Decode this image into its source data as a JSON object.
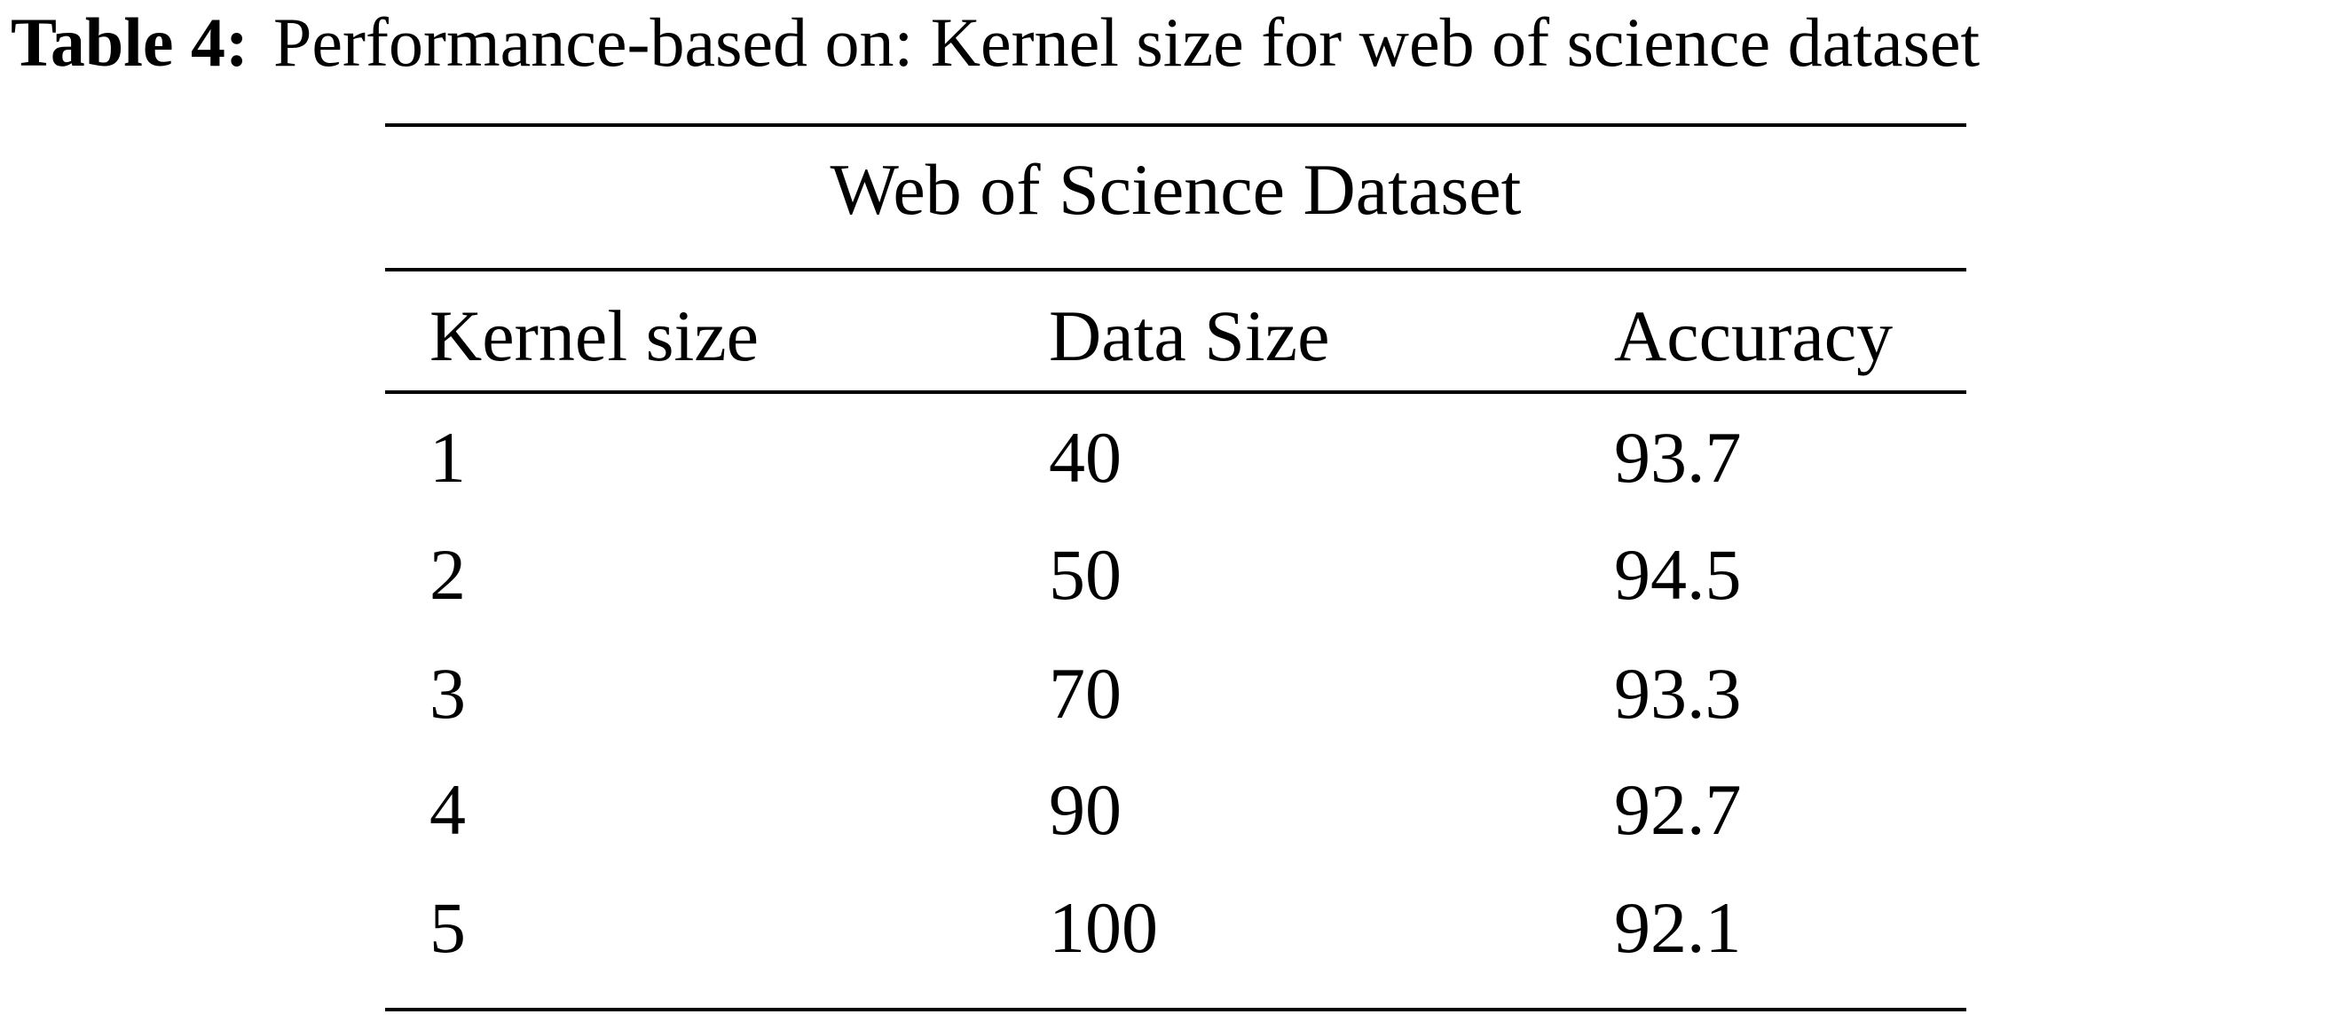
{
  "caption": {
    "label": "Table 4:",
    "text": "Performance-based on: Kernel size for web of science dataset"
  },
  "table": {
    "group_header": "Web of Science Dataset",
    "columns": [
      "Kernel size",
      "Data Size",
      "Accuracy"
    ],
    "rows": [
      [
        1,
        40,
        93.7
      ],
      [
        2,
        50,
        94.5
      ],
      [
        3,
        70,
        93.3
      ],
      [
        4,
        90,
        92.7
      ],
      [
        5,
        100,
        92.1
      ]
    ]
  }
}
